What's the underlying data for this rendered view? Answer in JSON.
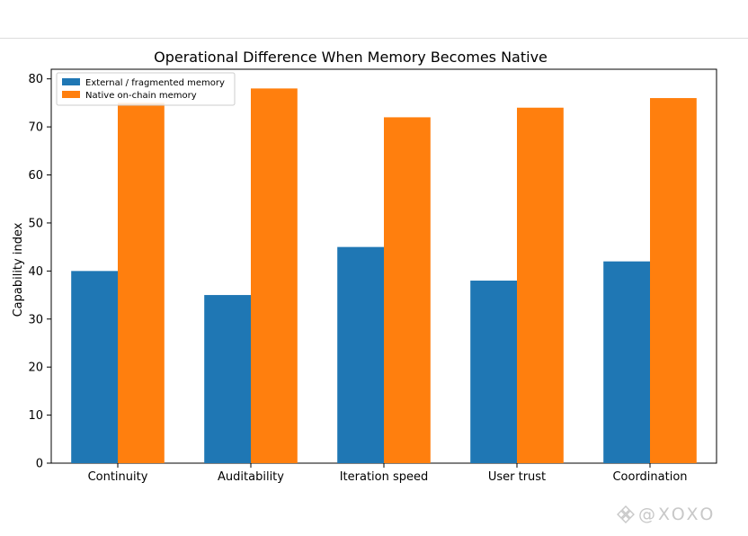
{
  "chart_data": {
    "type": "bar",
    "title": "Operational Difference When Memory Becomes Native",
    "xlabel": "",
    "ylabel": "Capability index",
    "categories": [
      "Continuity",
      "Auditability",
      "Iteration speed",
      "User trust",
      "Coordination"
    ],
    "series": [
      {
        "name": "External / fragmented memory",
        "values": [
          40,
          35,
          45,
          38,
          42
        ],
        "color": "#1f77b4"
      },
      {
        "name": "Native on-chain memory",
        "values": [
          75,
          78,
          72,
          74,
          76
        ],
        "color": "#ff7f0e"
      }
    ],
    "ylim": [
      0,
      82
    ],
    "yticks": [
      0,
      10,
      20,
      30,
      40,
      50,
      60,
      70,
      80
    ],
    "grid": false,
    "legend_position": "top-left"
  },
  "watermark": {
    "text": "@XOXO",
    "icon": "binance-logo-icon",
    "color": "#c8c8c8"
  }
}
